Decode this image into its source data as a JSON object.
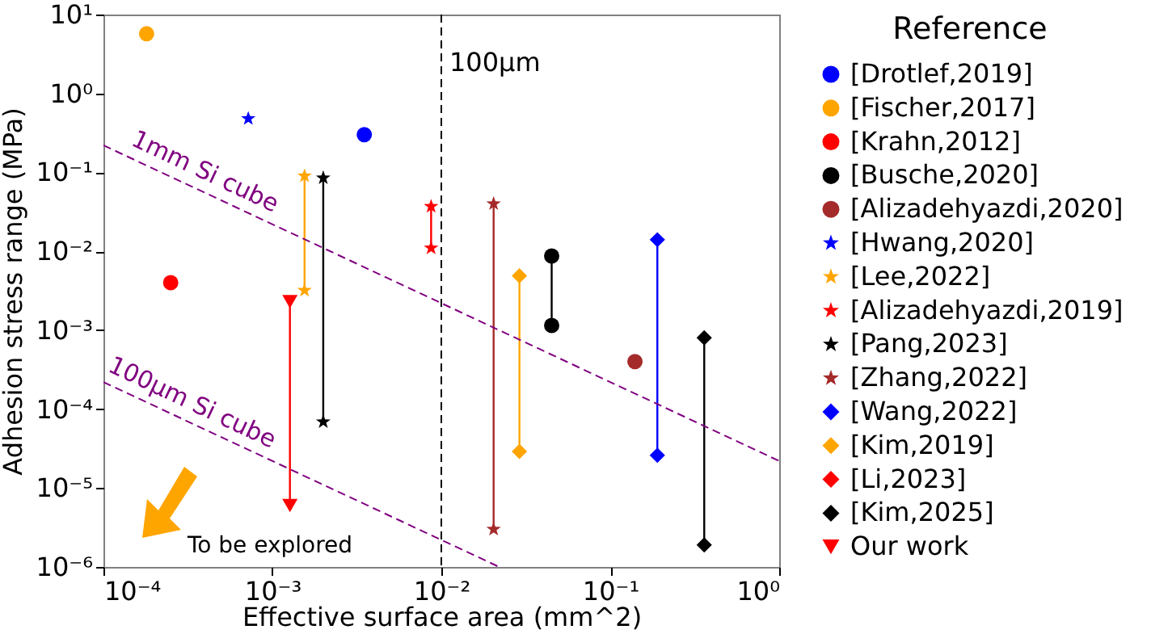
{
  "chart_data": {
    "type": "line",
    "xlabel": "Effective surface area (mm^2)",
    "ylabel": "Adhesion stress range (MPa)",
    "legend_title": "Reference",
    "legend": "right",
    "log": "xy",
    "grid": false,
    "xlim": [
      0.0001,
      1
    ],
    "ylim": [
      1e-06,
      10
    ],
    "xticks": [
      {
        "value": 0.0001,
        "label": "10⁻⁴"
      },
      {
        "value": 0.001,
        "label": "10⁻³"
      },
      {
        "value": 0.01,
        "label": "10⁻²"
      },
      {
        "value": 0.1,
        "label": "10⁻¹"
      },
      {
        "value": 1,
        "label": "10⁰"
      }
    ],
    "yticks": [
      {
        "value": 1e-06,
        "label": "10⁻⁶"
      },
      {
        "value": 1e-05,
        "label": "10⁻⁵"
      },
      {
        "value": 0.0001,
        "label": "10⁻⁴"
      },
      {
        "value": 0.001,
        "label": "10⁻³"
      },
      {
        "value": 0.01,
        "label": "10⁻²"
      },
      {
        "value": 0.1,
        "label": "10⁻¹"
      },
      {
        "value": 1,
        "label": "10⁰"
      },
      {
        "value": 10,
        "label": "10¹"
      }
    ],
    "series": [
      {
        "name": "[Drotlef,2019]",
        "color": "#0000ff",
        "marker": "circle",
        "x": [
          0.0035
        ],
        "values": [
          0.3
        ]
      },
      {
        "name": "[Fischer,2017]",
        "color": "#ffa500",
        "marker": "circle",
        "x": [
          0.00018
        ],
        "values": [
          5.7
        ]
      },
      {
        "name": "[Krahn,2012]",
        "color": "#ff0000",
        "marker": "circle",
        "x": [
          0.00025
        ],
        "values": [
          0.004
        ]
      },
      {
        "name": "[Busche,2020]",
        "color": "#000000",
        "marker": "circle",
        "x": [
          0.045,
          0.045
        ],
        "values": [
          0.0087,
          0.00115
        ]
      },
      {
        "name": "[Alizadehyazdi,2020]",
        "color": "#a52a2a",
        "marker": "circle",
        "x": [
          0.14
        ],
        "values": [
          0.0004
        ]
      },
      {
        "name": "[Hwang,2020]",
        "color": "#0000ff",
        "marker": "star",
        "x": [
          0.00072
        ],
        "values": [
          0.48
        ]
      },
      {
        "name": "[Lee,2022]",
        "color": "#ffa500",
        "marker": "star",
        "x": [
          0.00155,
          0.00155
        ],
        "values": [
          0.09,
          0.0032
        ]
      },
      {
        "name": "[Alizadehyazdi,2019]",
        "color": "#ff0000",
        "marker": "star",
        "x": [
          0.0087,
          0.0087
        ],
        "values": [
          0.037,
          0.011
        ]
      },
      {
        "name": "[Pang,2023]",
        "color": "#000000",
        "marker": "star",
        "x": [
          0.002,
          0.002
        ],
        "values": [
          0.085,
          6.9e-05
        ]
      },
      {
        "name": "[Zhang,2022]",
        "color": "#a52a2a",
        "marker": "star",
        "x": [
          0.0204,
          0.0204
        ],
        "values": [
          0.04,
          3e-06
        ]
      },
      {
        "name": "[Wang,2022]",
        "color": "#0000ff",
        "marker": "diamond",
        "x": [
          0.19,
          0.19
        ],
        "values": [
          0.014,
          2.6e-05
        ]
      },
      {
        "name": "[Kim,2019]",
        "color": "#ffa500",
        "marker": "diamond",
        "x": [
          0.029,
          0.029
        ],
        "values": [
          0.0049,
          2.9e-05
        ]
      },
      {
        "name": "[Li,2023]",
        "color": "#ff0000",
        "marker": "diamond"
      },
      {
        "name": "[Kim,2025]",
        "color": "#000000",
        "marker": "diamond",
        "x": [
          0.36,
          0.36
        ],
        "values": [
          0.0008,
          1.9e-06
        ]
      },
      {
        "name": "Our work",
        "color": "#ff0000",
        "marker": "triangle",
        "x": [
          0.00127,
          0.00127
        ],
        "values": [
          0.0023,
          6e-06
        ]
      },
      {
        "color": "#800080",
        "marker": "none",
        "line_style": "dashed",
        "x": [
          0.0001,
          1
        ],
        "values": [
          0.22,
          2.2e-05
        ]
      },
      {
        "color": "#800080",
        "marker": "none",
        "line_style": "dashed",
        "x": [
          0.0001,
          0.022
        ],
        "values": [
          0.00022,
          1e-06
        ]
      }
    ],
    "ref_lines": [
      {
        "axis": "x",
        "value": 0.01,
        "label": "100µm",
        "color": "#000000",
        "line_style": "dashed"
      }
    ],
    "annotations": [
      "1mm Si cube",
      "100µm Si cube",
      "To be explored"
    ]
  }
}
